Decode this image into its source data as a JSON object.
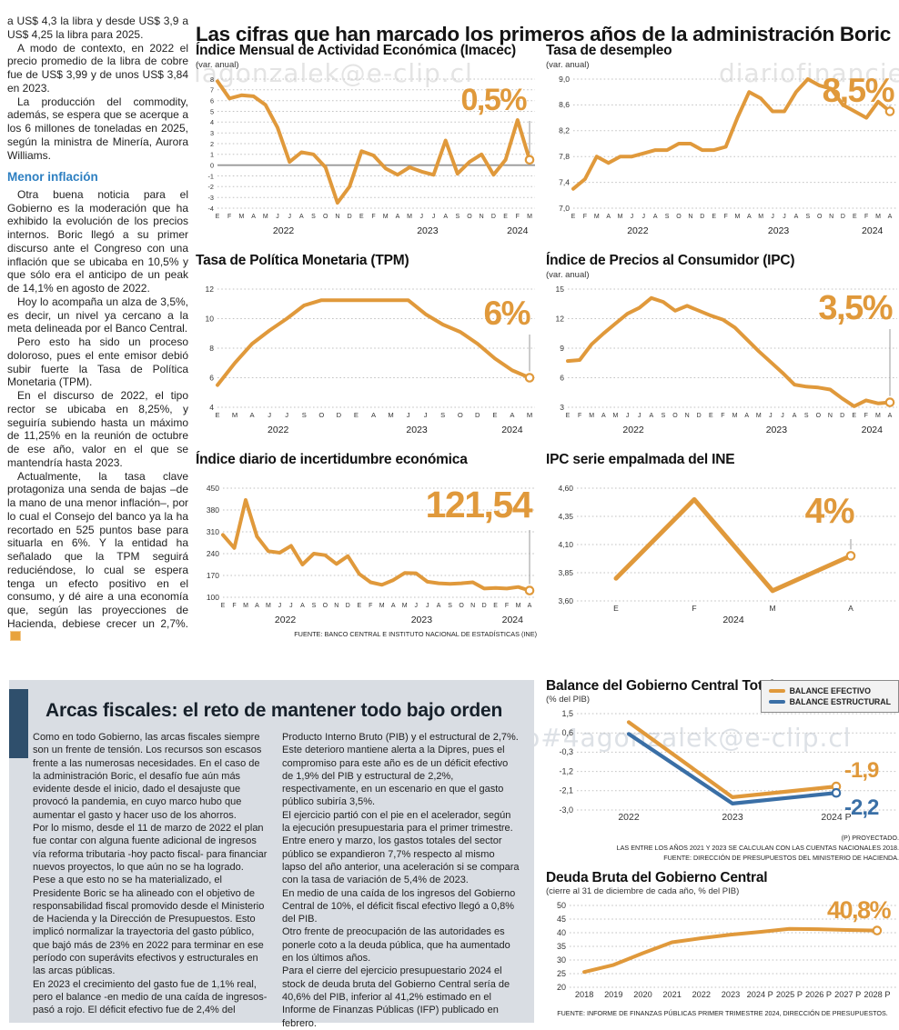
{
  "headline": "Las cifras que han marcado los primeros años de la administración Boric",
  "colors": {
    "accent_orange": "#E0993B",
    "line_blue": "#3A6FA6",
    "subhead_blue": "#2D7FC1",
    "panel_bg": "#D9DDE3",
    "panel_bar": "#2F4F6C"
  },
  "watermarks": [
    {
      "text": "iagonzalek@e-clip.cl"
    },
    {
      "text": "diariofinanciero"
    },
    {
      "text": "ero#4agonzalek@e-clip.cl"
    }
  ],
  "left_article": {
    "intro": [
      "a US$ 4,3 la libra y desde US$ 3,9 a US$ 4,25 la libra para 2025.",
      "A modo de contexto, en 2022 el precio promedio de la libra de cobre fue de US$ 3,99 y de unos US$ 3,84 en 2023.",
      "La producción del commodity, además, se espera que se acerque a los 6 millones de toneladas en 2025, según la ministra de Minería, Aurora Williams."
    ],
    "subhead": "Menor inflación",
    "body": [
      "Otra buena noticia para el Gobierno es la moderación que ha exhibido la evolución de los precios internos. Boric llegó a su primer discurso ante el Congreso con una inflación que se ubicaba en 10,5% y que sólo era el anticipo de un peak de 14,1% en agosto de 2022.",
      "Hoy lo acompaña un alza de 3,5%, es decir, un nivel ya cercano a la meta delineada por el Banco Central.",
      "Pero esto ha sido un proceso doloroso, pues el ente emisor debió subir fuerte la Tasa de Política Monetaria (TPM).",
      "En el discurso de 2022, el tipo rector se ubicaba en 8,25%, y seguiría subiendo hasta un máximo de 11,25% en la reunión de octubre de ese año, valor en el que se mantendría hasta 2023.",
      "Actualmente, la tasa clave protagoniza una senda de bajas –de la mano de una menor inflación–, por lo cual el Consejo del banco ya la ha recortado en 525 puntos base para situarla en 6%. Y la entidad ha señalado que la TPM seguirá reduciéndose, lo cual se espera tenga un efecto positivo en el consumo, y dé aire a una economía que, según las proyecciones de Hacienda, debiese crecer un 2,7%."
    ]
  },
  "bottom": {
    "heading": "Arcas fiscales: el reto de mantener todo bajo orden",
    "col1": [
      "Como en todo Gobierno, las arcas fiscales siempre son un frente de tensión. Los recursos son escasos frente a las numerosas necesidades. En el caso de la administración Boric, el desafío fue aún más evidente desde el inicio, dado el desajuste que provocó la pandemia, en cuyo marco hubo que aumentar el gasto y hacer uso de los ahorros.",
      "Por lo mismo, desde el 11 de marzo de 2022 el plan fue contar con alguna fuente adicional de ingresos vía reforma tributaria -hoy pacto fiscal- para financiar nuevos proyectos, lo que aún no se ha logrado.",
      "Pese a que esto no se ha materializado, el Presidente Boric se ha alineado con el objetivo de responsabilidad fiscal promovido desde el Ministerio de Hacienda y la Dirección de Presupuestos. Esto implicó normalizar la trayectoria del gasto público, que bajó más de 23% en 2022 para terminar en ese período con superávits efectivos y estructurales en las arcas públicas.",
      "En 2023 el crecimiento del gasto fue de 1,1% real, pero el balance -en medio de una caída de ingresos- pasó a rojo. El déficit efectivo fue de 2,4% del"
    ],
    "col2": [
      "Producto Interno Bruto (PIB) y el estructural de 2,7%. Este deterioro mantiene alerta a la Dipres, pues el compromiso para este año es de un déficit efectivo de 1,9% del PIB y estructural de 2,2%, respectivamente, en un escenario en que el gasto público subiría 3,5%.",
      "El ejercicio partió con el pie en el acelerador, según la ejecución presupuestaria para el primer trimestre. Entre enero y marzo, los gastos totales del sector público se expandieron 7,7% respecto al mismo lapso del año anterior, una aceleración si se compara con la tasa de variación de 5,4% de 2023.",
      "En medio de una caída de los ingresos del Gobierno Central de 10%, el déficit fiscal efectivo llegó a 0,8% del PIB.",
      "Otro frente de preocupación de las autoridades es ponerle coto a la deuda pública, que ha aumentado en los últimos años.",
      "Para el cierre del ejercicio presupuestario 2024 el stock de deuda bruta del Gobierno Central sería de 40,6% del PIB, inferior al 41,2% estimado en el Informe de Finanzas Públicas (IFP) publicado en febrero."
    ]
  },
  "chart_data": [
    {
      "type": "line",
      "title": "Índice Mensual de Actividad Económica (Imacec)",
      "subtitle": "(var. anual)",
      "end_label": "0,5%",
      "color": "#E0993B",
      "ylim": [
        -4,
        8
      ],
      "zero_line": true,
      "y_ticks": [
        {
          "label": "8",
          "v": 8
        },
        {
          "label": "7",
          "v": 7
        },
        {
          "label": "6",
          "v": 6
        },
        {
          "label": "5",
          "v": 5
        },
        {
          "label": "4",
          "v": 4
        },
        {
          "label": "3",
          "v": 3
        },
        {
          "label": "2",
          "v": 2
        },
        {
          "label": "1",
          "v": 1
        },
        {
          "label": "0",
          "v": 0
        },
        {
          "label": "-1",
          "v": -1
        },
        {
          "label": "-2",
          "v": -2
        },
        {
          "label": "-3",
          "v": -3
        },
        {
          "label": "-4",
          "v": -4
        }
      ],
      "x_labels": [
        "E",
        "F",
        "M",
        "A",
        "M",
        "J",
        "J",
        "A",
        "S",
        "O",
        "N",
        "D",
        "E",
        "F",
        "M",
        "A",
        "M",
        "J",
        "J",
        "A",
        "S",
        "O",
        "N",
        "D",
        "E",
        "F",
        "M"
      ],
      "year_ticks": [
        {
          "label": "2022",
          "i": 5.5
        },
        {
          "label": "2023",
          "i": 17.5
        },
        {
          "label": "2024",
          "i": 25
        }
      ],
      "values": [
        7.8,
        6.2,
        6.5,
        6.4,
        5.6,
        3.5,
        0.3,
        1.2,
        1.0,
        -0.2,
        -3.5,
        -2.0,
        1.3,
        0.9,
        -0.3,
        -0.9,
        -0.2,
        -0.6,
        -0.9,
        2.3,
        -0.8,
        0.3,
        1.0,
        -0.9,
        0.5,
        4.2,
        0.5
      ]
    },
    {
      "type": "line",
      "title": "Tasa de desempleo",
      "subtitle": "(var. anual)",
      "end_label": "8,5%",
      "color": "#E0993B",
      "ylim": [
        7.0,
        9.0
      ],
      "y_ticks": [
        {
          "label": "9,0",
          "v": 9.0
        },
        {
          "label": "8,6",
          "v": 8.6
        },
        {
          "label": "8,2",
          "v": 8.2
        },
        {
          "label": "7,8",
          "v": 7.8
        },
        {
          "label": "7,4",
          "v": 7.4
        },
        {
          "label": "7,0",
          "v": 7.0
        }
      ],
      "x_labels": [
        "E",
        "F",
        "M",
        "A",
        "M",
        "J",
        "J",
        "A",
        "S",
        "O",
        "N",
        "D",
        "E",
        "F",
        "M",
        "A",
        "M",
        "J",
        "J",
        "A",
        "S",
        "O",
        "N",
        "D",
        "E",
        "F",
        "M",
        "A"
      ],
      "year_ticks": [
        {
          "label": "2022",
          "i": 5.5
        },
        {
          "label": "2023",
          "i": 17.5
        },
        {
          "label": "2024",
          "i": 25.5
        }
      ],
      "values": [
        7.3,
        7.45,
        7.8,
        7.7,
        7.8,
        7.8,
        7.85,
        7.9,
        7.9,
        8.0,
        8.0,
        7.9,
        7.9,
        7.95,
        8.4,
        8.8,
        8.7,
        8.5,
        8.5,
        8.8,
        9.0,
        8.9,
        8.85,
        8.6,
        8.5,
        8.4,
        8.65,
        8.5
      ]
    },
    {
      "type": "line",
      "title": "Tasa de Política Monetaria (TPM)",
      "subtitle": "",
      "end_label": "6%",
      "color": "#E0993B",
      "ylim": [
        4,
        12
      ],
      "y_ticks": [
        {
          "label": "12",
          "v": 12
        },
        {
          "label": "10",
          "v": 10
        },
        {
          "label": "8",
          "v": 8
        },
        {
          "label": "6",
          "v": 6
        },
        {
          "label": "4",
          "v": 4
        }
      ],
      "x_labels": [
        "E",
        "M",
        "A",
        "J",
        "J",
        "S",
        "O",
        "D",
        "E",
        "A",
        "M",
        "J",
        "J",
        "S",
        "O",
        "D",
        "E",
        "A",
        "M"
      ],
      "year_ticks": [
        {
          "label": "2022",
          "i": 3.5
        },
        {
          "label": "2023",
          "i": 11.5
        },
        {
          "label": "2024",
          "i": 17
        }
      ],
      "values": [
        5.5,
        7.0,
        8.3,
        9.2,
        10.0,
        10.9,
        11.25,
        11.25,
        11.25,
        11.25,
        11.25,
        11.25,
        10.3,
        9.6,
        9.1,
        8.3,
        7.3,
        6.5,
        6.0
      ]
    },
    {
      "type": "line",
      "title": "Índice de Precios al Consumidor (IPC)",
      "subtitle": "(var. anual)",
      "end_label": "3,5%",
      "color": "#E0993B",
      "ylim": [
        3,
        15
      ],
      "y_ticks": [
        {
          "label": "15",
          "v": 15
        },
        {
          "label": "12",
          "v": 12
        },
        {
          "label": "9",
          "v": 9
        },
        {
          "label": "6",
          "v": 6
        },
        {
          "label": "3",
          "v": 3
        }
      ],
      "x_labels": [
        "E",
        "F",
        "M",
        "A",
        "M",
        "J",
        "J",
        "A",
        "S",
        "O",
        "N",
        "D",
        "E",
        "F",
        "M",
        "A",
        "M",
        "J",
        "J",
        "A",
        "S",
        "O",
        "N",
        "D",
        "E",
        "F",
        "M",
        "A"
      ],
      "year_ticks": [
        {
          "label": "2022",
          "i": 5.5
        },
        {
          "label": "2023",
          "i": 17.5
        },
        {
          "label": "2024",
          "i": 25.5
        }
      ],
      "values": [
        7.7,
        7.8,
        9.4,
        10.5,
        11.5,
        12.5,
        13.1,
        14.1,
        13.7,
        12.8,
        13.3,
        12.8,
        12.3,
        11.9,
        11.1,
        9.9,
        8.7,
        7.6,
        6.5,
        5.3,
        5.1,
        5.0,
        4.8,
        3.9,
        3.1,
        3.7,
        3.4,
        3.5
      ]
    },
    {
      "type": "line",
      "title": "Índice diario de incertidumbre económica",
      "subtitle": "",
      "end_label": "121,54",
      "color": "#E0993B",
      "ylim": [
        100,
        450
      ],
      "y_ticks": [
        {
          "label": "450",
          "v": 450
        },
        {
          "label": "380",
          "v": 380
        },
        {
          "label": "310",
          "v": 310
        },
        {
          "label": "240",
          "v": 240
        },
        {
          "label": "170",
          "v": 170
        },
        {
          "label": "100",
          "v": 100
        }
      ],
      "x_labels": [
        "E",
        "F",
        "M",
        "A",
        "M",
        "J",
        "J",
        "A",
        "S",
        "O",
        "N",
        "D",
        "E",
        "F",
        "M",
        "A",
        "M",
        "J",
        "J",
        "A",
        "S",
        "O",
        "N",
        "D",
        "E",
        "F",
        "M",
        "A"
      ],
      "year_ticks": [
        {
          "label": "2022",
          "i": 5.5
        },
        {
          "label": "2023",
          "i": 17.5
        },
        {
          "label": "2024",
          "i": 25.5
        }
      ],
      "values": [
        300,
        258,
        412,
        295,
        248,
        243,
        265,
        205,
        240,
        235,
        207,
        232,
        175,
        148,
        140,
        155,
        178,
        177,
        150,
        145,
        143,
        145,
        148,
        128,
        130,
        128,
        133,
        121.54
      ],
      "source": "FUENTE: BANCO CENTRAL E INSTITUTO NACIONAL DE ESTADÍSTICAS (INE)"
    },
    {
      "type": "line",
      "title": "IPC serie empalmada del INE",
      "subtitle": "",
      "end_label": "4%",
      "color": "#E0993B",
      "ylim": [
        3.6,
        4.6
      ],
      "x_mode": "centered",
      "y_ticks": [
        {
          "label": "4,60",
          "v": 4.6
        },
        {
          "label": "4,35",
          "v": 4.35
        },
        {
          "label": "4,10",
          "v": 4.1
        },
        {
          "label": "3,85",
          "v": 3.85
        },
        {
          "label": "3,60",
          "v": 3.6
        }
      ],
      "x_labels": [
        "E",
        "F",
        "M",
        "A"
      ],
      "year_ticks": [
        {
          "label": "2024",
          "i": 1.5
        }
      ],
      "values": [
        3.8,
        4.5,
        3.69,
        4.0
      ]
    },
    {
      "type": "line",
      "title": "Balance del Gobierno Central Total",
      "subtitle": "(% del PIB)",
      "ylim": [
        -3.0,
        1.5
      ],
      "x_mode": "centered",
      "y_ticks": [
        {
          "label": "1,5",
          "v": 1.5
        },
        {
          "label": "0,6",
          "v": 0.6
        },
        {
          "label": "-0,3",
          "v": -0.3
        },
        {
          "label": "-1,2",
          "v": -1.2
        },
        {
          "label": "-2,1",
          "v": -2.1
        },
        {
          "label": "-3,0",
          "v": -3.0
        }
      ],
      "x_labels": [
        "2022",
        "2023",
        "2024 P"
      ],
      "series": [
        {
          "name": "BALANCE EFECTIVO",
          "color": "#E0993B",
          "values": [
            1.1,
            -2.4,
            -1.9
          ],
          "end_label": "-1,9"
        },
        {
          "name": "BALANCE ESTRUCTURAL",
          "color": "#3A6FA6",
          "values": [
            0.55,
            -2.7,
            -2.2
          ],
          "end_label": "-2,2"
        }
      ],
      "footnotes": [
        "(P) PROYECTADO.",
        "LAS ENTRE LOS AÑOS 2021 Y 2023 SE CALCULAN  CON LAS CUENTAS NACIONALES 2018.",
        "FUENTE: DIRECCIÓN DE PRESUPUESTOS DEL MINISTERIO DE HACIENDA."
      ]
    },
    {
      "type": "line",
      "title": "Deuda Bruta del Gobierno Central",
      "subtitle": "(cierre al 31 de diciembre de cada año, % del PIB)",
      "end_label": "40,8%",
      "color": "#E0993B",
      "ylim": [
        20,
        50
      ],
      "x_mode": "centered",
      "y_ticks": [
        {
          "label": "50",
          "v": 50
        },
        {
          "label": "45",
          "v": 45
        },
        {
          "label": "40",
          "v": 40
        },
        {
          "label": "35",
          "v": 35
        },
        {
          "label": "30",
          "v": 30
        },
        {
          "label": "25",
          "v": 25
        },
        {
          "label": "20",
          "v": 20
        }
      ],
      "x_labels": [
        "2018",
        "2019",
        "2020",
        "2021",
        "2022",
        "2023",
        "2024 P",
        "2025 P",
        "2026 P",
        "2027 P",
        "2028 P"
      ],
      "values": [
        25.6,
        28.2,
        32.5,
        36.5,
        38.0,
        39.3,
        40.3,
        41.4,
        41.3,
        41.0,
        40.8
      ],
      "source": "FUENTE: INFORME DE FINANZAS PÚBLICAS PRIMER TRIMESTRE 2024, DIRECCIÓN DE PRESUPUESTOS."
    }
  ]
}
